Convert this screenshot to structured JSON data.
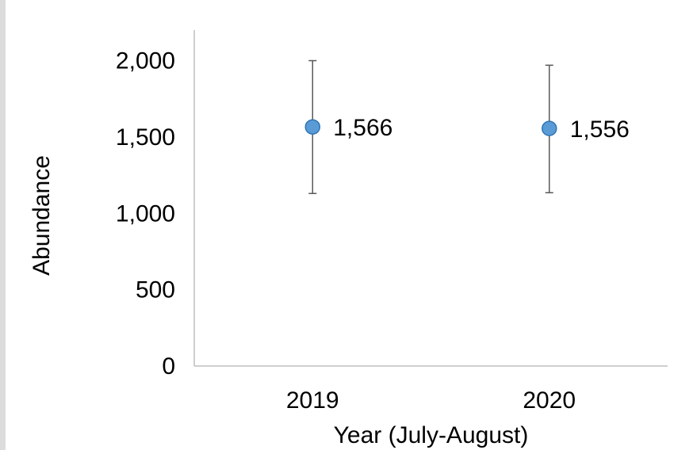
{
  "chart_data": {
    "type": "scatter",
    "categories": [
      "2019",
      "2020"
    ],
    "series": [
      {
        "values": [
          1566,
          1556
        ],
        "error_low": [
          1130,
          1135
        ],
        "error_high": [
          2000,
          1970
        ],
        "data_labels": [
          "1,566",
          "1,556"
        ],
        "color": "#5b9bd5",
        "edge_color": "#2e75b6"
      }
    ],
    "xlabel": "Year (July-August)",
    "ylabel": "Abundance",
    "ylim": [
      0,
      2200
    ],
    "yticks": [
      0,
      500,
      1000,
      1500,
      2000
    ],
    "ytick_labels": [
      "0",
      "500",
      "1,000",
      "1,500",
      "2,000"
    ],
    "grid": false,
    "legend": "none",
    "error_bar_color": "#595959",
    "axis_color": "#bfbfbf"
  }
}
